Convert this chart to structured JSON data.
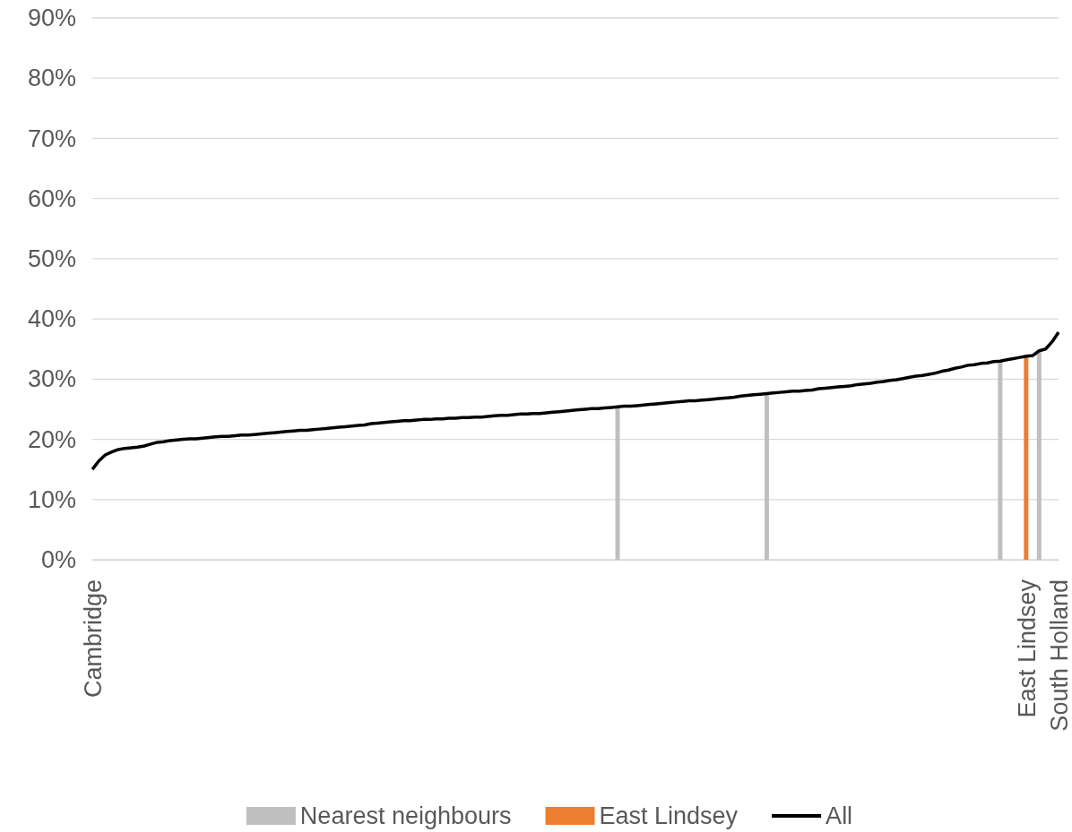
{
  "chart_data": {
    "type": "line",
    "categories": [
      "Cambridge",
      null,
      null,
      null,
      null,
      null,
      null,
      null,
      null,
      null,
      null,
      null,
      null,
      null,
      null,
      null,
      null,
      null,
      null,
      null,
      null,
      null,
      null,
      null,
      null,
      null,
      null,
      null,
      null,
      null,
      null,
      null,
      null,
      null,
      null,
      null,
      null,
      null,
      null,
      null,
      null,
      null,
      null,
      null,
      null,
      null,
      null,
      null,
      null,
      null,
      null,
      null,
      null,
      null,
      null,
      null,
      null,
      null,
      null,
      null,
      null,
      null,
      null,
      null,
      null,
      null,
      null,
      null,
      null,
      null,
      null,
      null,
      null,
      null,
      null,
      null,
      null,
      null,
      null,
      null,
      null,
      null,
      null,
      null,
      null,
      null,
      null,
      null,
      null,
      null,
      null,
      null,
      null,
      null,
      null,
      null,
      null,
      null,
      null,
      null,
      null,
      null,
      null,
      null,
      null,
      null,
      null,
      null,
      null,
      null,
      null,
      null,
      null,
      null,
      null,
      null,
      null,
      null,
      null,
      null,
      null,
      null,
      null,
      null,
      null,
      null,
      null,
      null,
      null,
      null,
      null,
      null,
      null,
      null,
      null,
      null,
      null,
      null,
      null,
      null,
      null,
      null,
      null,
      null,
      "East Lindsey",
      null,
      null,
      null,
      null,
      "South Holland"
    ],
    "ylim": [
      0,
      90
    ],
    "yticks": [
      {
        "value": 0,
        "label": "0%"
      },
      {
        "value": 10,
        "label": "10%"
      },
      {
        "value": 20,
        "label": "20%"
      },
      {
        "value": 30,
        "label": "30%"
      },
      {
        "value": 40,
        "label": "40%"
      },
      {
        "value": 50,
        "label": "50%"
      },
      {
        "value": 60,
        "label": "60%"
      },
      {
        "value": 70,
        "label": "70%"
      },
      {
        "value": 80,
        "label": "80%"
      },
      {
        "value": 90,
        "label": "90%"
      }
    ],
    "grid": "y",
    "legend": "bottom",
    "series": [
      {
        "name": "Nearest neighbours",
        "type": "bar",
        "color": "#bfbfbf",
        "values": [
          null,
          null,
          null,
          null,
          null,
          null,
          null,
          null,
          null,
          null,
          null,
          null,
          null,
          null,
          null,
          null,
          null,
          null,
          null,
          null,
          null,
          null,
          null,
          null,
          null,
          null,
          null,
          null,
          null,
          null,
          null,
          null,
          null,
          null,
          null,
          null,
          null,
          null,
          null,
          null,
          null,
          null,
          null,
          null,
          null,
          null,
          null,
          null,
          null,
          null,
          null,
          null,
          null,
          null,
          null,
          null,
          null,
          null,
          null,
          null,
          null,
          null,
          null,
          null,
          null,
          null,
          null,
          null,
          null,
          null,
          null,
          null,
          null,
          null,
          null,
          null,
          null,
          null,
          null,
          null,
          null,
          25.4,
          null,
          null,
          null,
          null,
          null,
          null,
          null,
          null,
          null,
          null,
          null,
          null,
          null,
          null,
          null,
          null,
          null,
          null,
          null,
          null,
          null,
          null,
          27.6,
          null,
          null,
          null,
          null,
          null,
          null,
          null,
          null,
          null,
          null,
          null,
          null,
          null,
          null,
          null,
          null,
          null,
          null,
          null,
          null,
          null,
          null,
          null,
          null,
          null,
          null,
          null,
          null,
          null,
          null,
          null,
          null,
          null,
          null,
          null,
          33.0,
          null,
          null,
          null,
          null,
          null,
          34.7,
          null,
          null,
          null
        ]
      },
      {
        "name": "East Lindsey",
        "type": "bar",
        "color": "#ed7d31",
        "values": [
          null,
          null,
          null,
          null,
          null,
          null,
          null,
          null,
          null,
          null,
          null,
          null,
          null,
          null,
          null,
          null,
          null,
          null,
          null,
          null,
          null,
          null,
          null,
          null,
          null,
          null,
          null,
          null,
          null,
          null,
          null,
          null,
          null,
          null,
          null,
          null,
          null,
          null,
          null,
          null,
          null,
          null,
          null,
          null,
          null,
          null,
          null,
          null,
          null,
          null,
          null,
          null,
          null,
          null,
          null,
          null,
          null,
          null,
          null,
          null,
          null,
          null,
          null,
          null,
          null,
          null,
          null,
          null,
          null,
          null,
          null,
          null,
          null,
          null,
          null,
          null,
          null,
          null,
          null,
          null,
          null,
          null,
          null,
          null,
          null,
          null,
          null,
          null,
          null,
          null,
          null,
          null,
          null,
          null,
          null,
          null,
          null,
          null,
          null,
          null,
          null,
          null,
          null,
          null,
          null,
          null,
          null,
          null,
          null,
          null,
          null,
          null,
          null,
          null,
          null,
          null,
          null,
          null,
          null,
          null,
          null,
          null,
          null,
          null,
          null,
          null,
          null,
          null,
          null,
          null,
          null,
          null,
          null,
          null,
          null,
          null,
          null,
          null,
          null,
          null,
          null,
          null,
          null,
          null,
          33.8,
          null,
          null,
          null,
          null,
          null
        ]
      },
      {
        "name": "All",
        "color": "#000000",
        "values": [
          15.0,
          16.4,
          17.4,
          17.9,
          18.3,
          18.5,
          18.6,
          18.7,
          18.9,
          19.2,
          19.5,
          19.6,
          19.8,
          19.9,
          20.0,
          20.1,
          20.1,
          20.2,
          20.3,
          20.4,
          20.5,
          20.5,
          20.6,
          20.7,
          20.7,
          20.8,
          20.9,
          21.0,
          21.1,
          21.2,
          21.3,
          21.4,
          21.5,
          21.5,
          21.6,
          21.7,
          21.8,
          21.9,
          22.0,
          22.1,
          22.2,
          22.3,
          22.4,
          22.6,
          22.7,
          22.8,
          22.9,
          23.0,
          23.1,
          23.1,
          23.2,
          23.3,
          23.3,
          23.4,
          23.4,
          23.5,
          23.5,
          23.6,
          23.6,
          23.7,
          23.7,
          23.8,
          23.9,
          24.0,
          24.0,
          24.1,
          24.2,
          24.2,
          24.3,
          24.3,
          24.4,
          24.5,
          24.6,
          24.7,
          24.8,
          24.9,
          25.0,
          25.1,
          25.1,
          25.2,
          25.3,
          25.4,
          25.5,
          25.5,
          25.6,
          25.7,
          25.8,
          25.9,
          26.0,
          26.1,
          26.2,
          26.3,
          26.4,
          26.4,
          26.5,
          26.6,
          26.7,
          26.8,
          26.9,
          27.0,
          27.2,
          27.3,
          27.4,
          27.5,
          27.6,
          27.7,
          27.8,
          27.9,
          28.0,
          28.0,
          28.1,
          28.2,
          28.4,
          28.5,
          28.6,
          28.7,
          28.8,
          28.9,
          29.1,
          29.2,
          29.3,
          29.5,
          29.6,
          29.8,
          29.9,
          30.1,
          30.3,
          30.5,
          30.6,
          30.8,
          31.0,
          31.3,
          31.5,
          31.8,
          32.0,
          32.3,
          32.4,
          32.6,
          32.7,
          32.9,
          33.0,
          33.2,
          33.4,
          33.6,
          33.8,
          33.9,
          34.7,
          35.0,
          36.2,
          37.8
        ]
      }
    ]
  }
}
